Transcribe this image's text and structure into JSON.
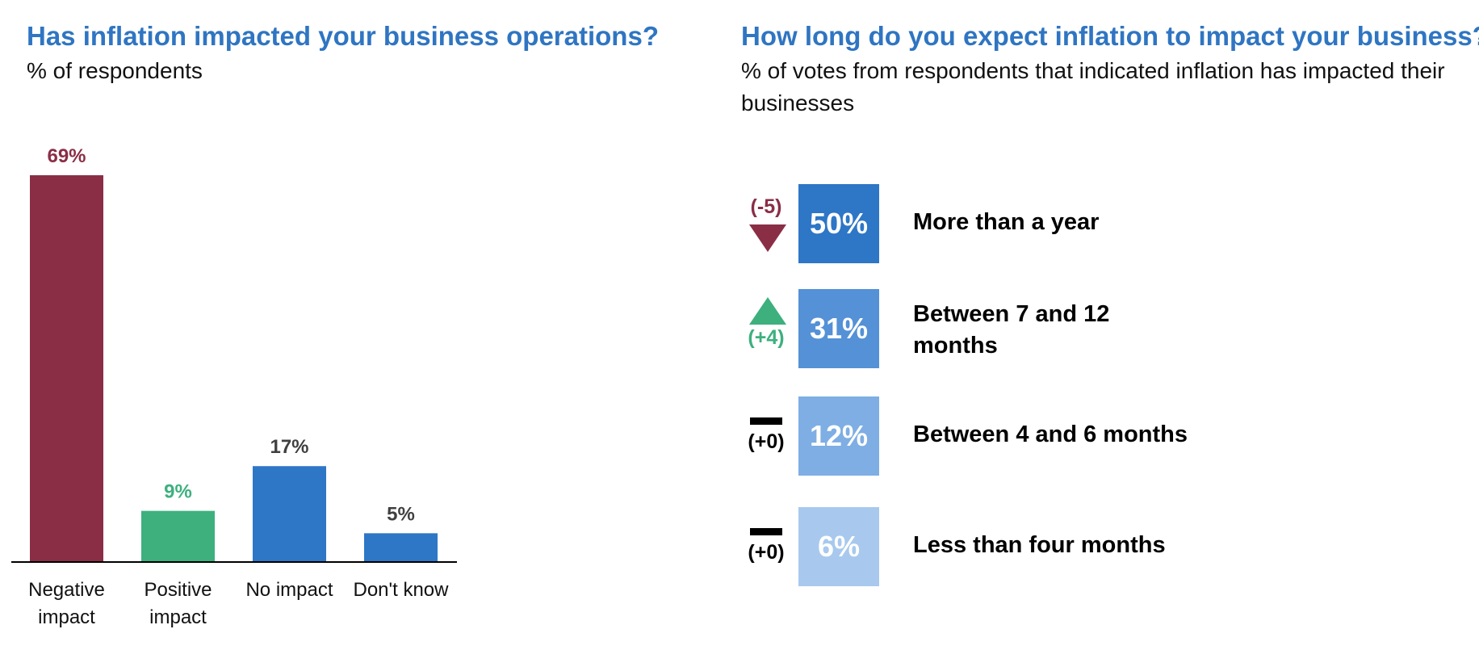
{
  "left": {
    "title": "Has inflation impacted your business operations?",
    "subtitle": "% of respondents"
  },
  "right": {
    "title": "How long do you expect inflation to impact your business?",
    "subtitle": "% of votes from respondents that indicated inflation has impacted their businesses",
    "rows": [
      {
        "label": "More than a year",
        "value_label": "50%",
        "value": 50,
        "change_label": "(-5)",
        "change": -5,
        "trend": "down",
        "box_color": "#2e76c6",
        "change_color": "#8a2e46"
      },
      {
        "label": "Between 7 and 12 months",
        "value_label": "31%",
        "value": 31,
        "change_label": "(+4)",
        "change": 4,
        "trend": "up",
        "box_color": "#5491d6",
        "change_color": "#3db07e"
      },
      {
        "label": "Between 4 and 6 months",
        "value_label": "12%",
        "value": 12,
        "change_label": "(+0)",
        "change": 0,
        "trend": "flat",
        "box_color": "#7eaee3",
        "change_color": "#000000"
      },
      {
        "label": "Less than four months",
        "value_label": "6%",
        "value": 6,
        "change_label": "(+0)",
        "change": 0,
        "trend": "flat",
        "box_color": "#a8c9ed",
        "change_color": "#000000"
      }
    ]
  },
  "chart_data": [
    {
      "type": "bar",
      "title": "Has inflation impacted your business operations?",
      "subtitle": "% of respondents",
      "categories": [
        "Negative\nimpact",
        "Positive\nimpact",
        "No impact",
        "Don't know"
      ],
      "values": [
        69,
        9,
        17,
        5
      ],
      "value_labels": [
        "69%",
        "9%",
        "17%",
        "5%"
      ],
      "colors": [
        "#8a2e46",
        "#3db07e",
        "#2e76c6",
        "#2e76c6"
      ],
      "label_colors": [
        "#8a2e46",
        "#3db07e",
        "#404040",
        "#404040"
      ],
      "ylim": [
        0,
        69
      ],
      "grid": false,
      "legend": "none"
    },
    {
      "type": "table",
      "title": "How long do you expect inflation to impact your business?",
      "subtitle": "% of votes from respondents that indicated inflation has impacted their businesses",
      "categories": [
        "More than a year",
        "Between 7 and 12 months",
        "Between 4 and 6 months",
        "Less than four months"
      ],
      "values": [
        50,
        31,
        12,
        6
      ],
      "changes": [
        -5,
        4,
        0,
        0
      ]
    }
  ]
}
